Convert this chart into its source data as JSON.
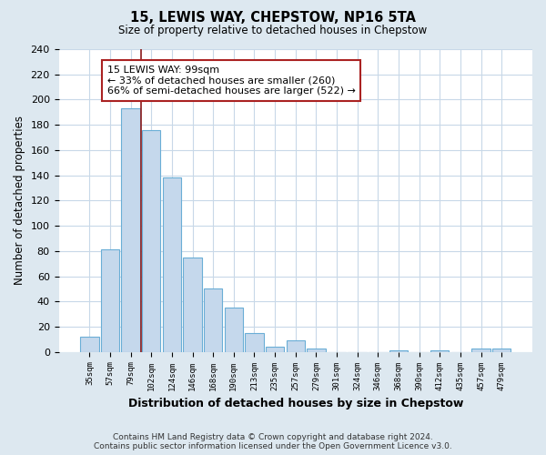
{
  "title": "15, LEWIS WAY, CHEPSTOW, NP16 5TA",
  "subtitle": "Size of property relative to detached houses in Chepstow",
  "xlabel": "Distribution of detached houses by size in Chepstow",
  "ylabel": "Number of detached properties",
  "bar_labels": [
    "35sqm",
    "57sqm",
    "79sqm",
    "102sqm",
    "124sqm",
    "146sqm",
    "168sqm",
    "190sqm",
    "213sqm",
    "235sqm",
    "257sqm",
    "279sqm",
    "301sqm",
    "324sqm",
    "346sqm",
    "368sqm",
    "390sqm",
    "412sqm",
    "435sqm",
    "457sqm",
    "479sqm"
  ],
  "bar_values": [
    12,
    81,
    193,
    176,
    138,
    75,
    50,
    35,
    15,
    4,
    9,
    3,
    0,
    0,
    0,
    1,
    0,
    1,
    0,
    3,
    3
  ],
  "bar_color": "#c5d8ec",
  "bar_edge_color": "#6aaed6",
  "highlight_line_color": "#8b1a1a",
  "annotation_text": "15 LEWIS WAY: 99sqm\n← 33% of detached houses are smaller (260)\n66% of semi-detached houses are larger (522) →",
  "annotation_box_color": "#ffffff",
  "annotation_box_edge": "#aa2222",
  "ylim": [
    0,
    240
  ],
  "yticks": [
    0,
    20,
    40,
    60,
    80,
    100,
    120,
    140,
    160,
    180,
    200,
    220,
    240
  ],
  "footer_text": "Contains HM Land Registry data © Crown copyright and database right 2024.\nContains public sector information licensed under the Open Government Licence v3.0.",
  "bg_color": "#dde8f0",
  "plot_bg_color": "#ffffff",
  "grid_color": "#c8d8e8"
}
